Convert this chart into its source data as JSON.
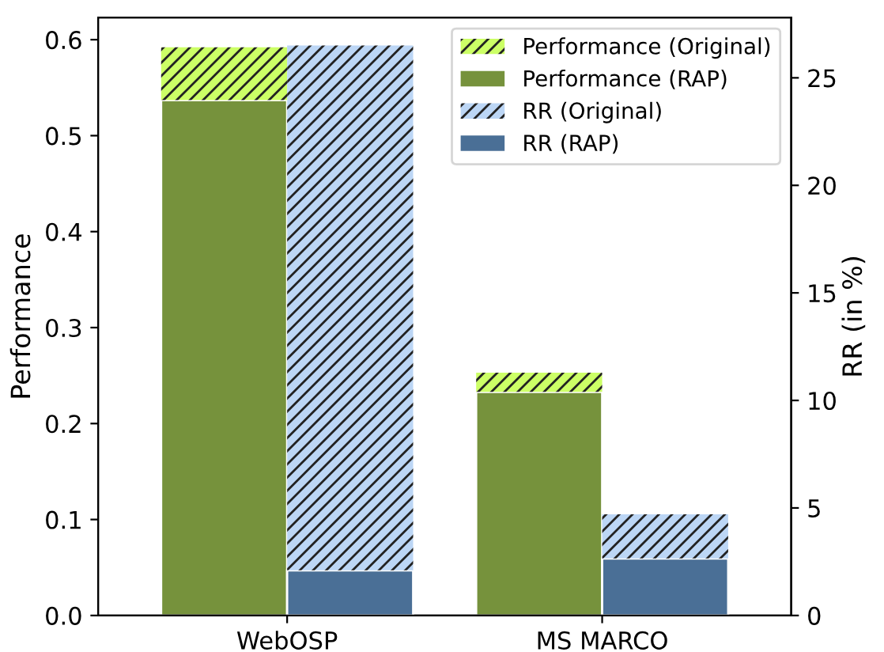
{
  "chart_data": {
    "type": "bar",
    "stacked": true,
    "ylabel": "Performance",
    "y2label": "RR (in %)",
    "categories": [
      "WebOSP",
      "MS MARCO"
    ],
    "series": [
      {
        "name": "Performance (RAP)",
        "color": "#76923c",
        "values": [
          0.537,
          0.233
        ]
      },
      {
        "name": "Performance (Original)",
        "color": "#ccff66",
        "values": [
          0.055,
          0.02
        ]
      },
      {
        "name": "RR (RAP)",
        "color": "#4a6f96",
        "axis": "y2",
        "values": [
          2.1,
          2.65
        ]
      },
      {
        "name": "RR (Original)",
        "color": "#bcd6f5",
        "axis": "y2",
        "values": [
          24.4,
          2.05
        ]
      }
    ],
    "ylim": [
      0,
      0.623
    ],
    "yticks": [
      {
        "value": 0,
        "label": "0.0"
      },
      0.1,
      0.2,
      0.3,
      0.4,
      0.5,
      0.6
    ],
    "y2lim": [
      0,
      27.8
    ],
    "y2ticks": [
      0,
      5,
      10,
      15,
      20,
      25
    ],
    "legend": "top right"
  }
}
